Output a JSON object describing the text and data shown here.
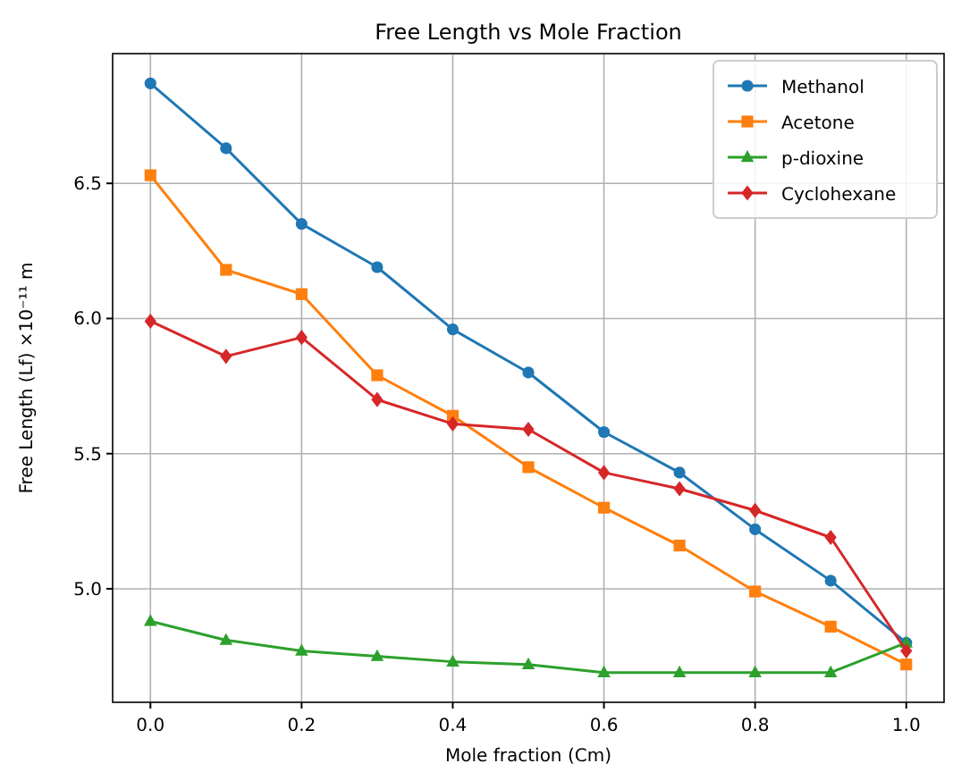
{
  "chart_data": {
    "type": "line",
    "title": "Free Length vs Mole Fraction",
    "xlabel": "Mole fraction (Cm)",
    "ylabel": "Free Length (Lf) ×10⁻¹¹ m",
    "x": [
      0,
      0.1,
      0.2,
      0.3,
      0.4,
      0.5,
      0.6,
      0.7,
      0.8,
      0.9,
      1.0
    ],
    "series": [
      {
        "name": "Methanol",
        "color": "#1f77b4",
        "marker": "circle",
        "values": [
          6.87,
          6.63,
          6.35,
          6.19,
          5.96,
          5.8,
          5.58,
          5.43,
          5.22,
          5.03,
          4.8
        ]
      },
      {
        "name": "Acetone",
        "color": "#ff7f0e",
        "marker": "square",
        "values": [
          6.53,
          6.18,
          6.09,
          5.79,
          5.64,
          5.45,
          5.3,
          5.16,
          4.99,
          4.86,
          4.72
        ]
      },
      {
        "name": "p-dioxine",
        "color": "#2ca02c",
        "marker": "triangle",
        "values": [
          4.88,
          4.81,
          4.77,
          4.75,
          4.73,
          4.72,
          4.69,
          4.69,
          4.69,
          4.69,
          4.8
        ]
      },
      {
        "name": "Cyclohexane",
        "color": "#d62728",
        "marker": "diamond",
        "values": [
          5.99,
          5.86,
          5.93,
          5.7,
          5.61,
          5.59,
          5.43,
          5.37,
          5.29,
          5.19,
          4.77
        ]
      }
    ],
    "xlim": [
      -0.05,
      1.05
    ],
    "ylim": [
      4.58,
      6.98
    ],
    "xticks": [
      {
        "value": 0,
        "label": "0.0"
      },
      0.2,
      0.4,
      0.6,
      0.8,
      {
        "value": 1,
        "label": "1.0"
      }
    ],
    "yticks": [
      {
        "value": 5,
        "label": "5.0"
      },
      5.5,
      {
        "value": 6,
        "label": "6.0"
      },
      6.5
    ],
    "grid": true,
    "legend": "top right",
    "line_style": "solid"
  }
}
